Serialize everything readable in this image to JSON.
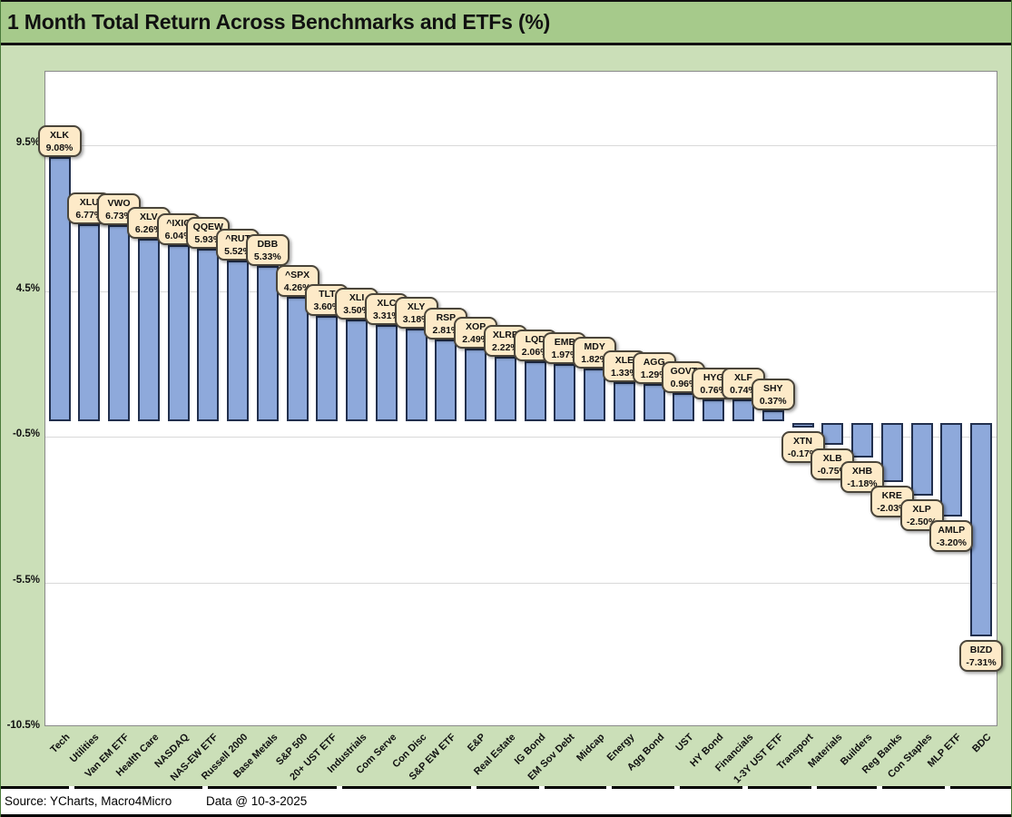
{
  "title": "1 Month Total Return Across Benchmarks and ETFs (%)",
  "footer": {
    "source_text": "Source: YCharts, Macro4Micro",
    "data_date": "Data @ 10-3-2025"
  },
  "colors": {
    "title_bar_bg": "#a6ca8b",
    "body_bg": "#cbdfb8",
    "plot_bg": "#ffffff",
    "gridline": "#d9d9d9",
    "bar_fill": "#8ea9db",
    "bar_border": "#22304e",
    "callout_bg": "#fdeac8",
    "callout_border": "#4a453a"
  },
  "chart_data": {
    "type": "bar",
    "title": "1 Month Total Return Across Benchmarks and ETFs (%)",
    "xlabel": "",
    "ylabel": "",
    "ylim": [
      -10.5,
      12
    ],
    "grid": true,
    "legend": false,
    "y_ticks": [
      {
        "label": "9.5%",
        "value": 9.5
      },
      {
        "label": "4.5%",
        "value": 4.5
      },
      {
        "label": "-0.5%",
        "value": -0.5
      },
      {
        "label": "-5.5%",
        "value": -5.5
      },
      {
        "label": "-10.5%",
        "value": -10.5
      }
    ],
    "points": [
      {
        "category": "Tech",
        "ticker": "XLK",
        "value": 9.08,
        "label": "9.08%"
      },
      {
        "category": "Utilities",
        "ticker": "XLU",
        "value": 6.77,
        "label": "6.77%"
      },
      {
        "category": "Van EM ETF",
        "ticker": "VWO",
        "value": 6.73,
        "label": "6.73%"
      },
      {
        "category": "Health Care",
        "ticker": "XLV",
        "value": 6.26,
        "label": "6.26%"
      },
      {
        "category": "NASDAQ",
        "ticker": "^IXIC",
        "value": 6.04,
        "label": "6.04%"
      },
      {
        "category": "NAS-EW ETF",
        "ticker": "QQEW",
        "value": 5.93,
        "label": "5.93%"
      },
      {
        "category": "Russell 2000",
        "ticker": "^RUT",
        "value": 5.52,
        "label": "5.52%"
      },
      {
        "category": "Base Metals",
        "ticker": "DBB",
        "value": 5.33,
        "label": "5.33%"
      },
      {
        "category": "S&P 500",
        "ticker": "^SPX",
        "value": 4.26,
        "label": "4.26%"
      },
      {
        "category": "20+ UST ETF",
        "ticker": "TLT",
        "value": 3.6,
        "label": "3.60%"
      },
      {
        "category": "Industrials",
        "ticker": "XLI",
        "value": 3.5,
        "label": "3.50%"
      },
      {
        "category": "Com Serve",
        "ticker": "XLC",
        "value": 3.31,
        "label": "3.31%"
      },
      {
        "category": "Con Disc",
        "ticker": "XLY",
        "value": 3.18,
        "label": "3.18%"
      },
      {
        "category": "S&P EW ETF",
        "ticker": "RSP",
        "value": 2.81,
        "label": "2.81%"
      },
      {
        "category": "E&P",
        "ticker": "XOP",
        "value": 2.49,
        "label": "2.49%"
      },
      {
        "category": "Real Estate",
        "ticker": "XLRE",
        "value": 2.22,
        "label": "2.22%"
      },
      {
        "category": "IG Bond",
        "ticker": "LQD",
        "value": 2.06,
        "label": "2.06%"
      },
      {
        "category": "EM Sov Debt",
        "ticker": "EMB",
        "value": 1.97,
        "label": "1.97%"
      },
      {
        "category": "Midcap",
        "ticker": "MDY",
        "value": 1.82,
        "label": "1.82%"
      },
      {
        "category": "Energy",
        "ticker": "XLE",
        "value": 1.33,
        "label": "1.33%"
      },
      {
        "category": "Agg Bond",
        "ticker": "AGG",
        "value": 1.29,
        "label": "1.29%"
      },
      {
        "category": "UST",
        "ticker": "GOVT",
        "value": 0.96,
        "label": "0.96%"
      },
      {
        "category": "HY Bond",
        "ticker": "HYG",
        "value": 0.76,
        "label": "0.76%"
      },
      {
        "category": "Financials",
        "ticker": "XLF",
        "value": 0.74,
        "label": "0.74%"
      },
      {
        "category": "1-3Y UST ETF",
        "ticker": "SHY",
        "value": 0.37,
        "label": "0.37%"
      },
      {
        "category": "Transport",
        "ticker": "XTN",
        "value": -0.17,
        "label": "-0.17%"
      },
      {
        "category": "Materials",
        "ticker": "XLB",
        "value": -0.75,
        "label": "-0.75%"
      },
      {
        "category": "Builders",
        "ticker": "XHB",
        "value": -1.18,
        "label": "-1.18%"
      },
      {
        "category": "Reg Banks",
        "ticker": "KRE",
        "value": -2.03,
        "label": "-2.03%"
      },
      {
        "category": "Con Staples",
        "ticker": "XLP",
        "value": -2.5,
        "label": "-2.50%"
      },
      {
        "category": "MLP ETF",
        "ticker": "AMLP",
        "value": -3.2,
        "label": "-3.20%"
      },
      {
        "category": "BDC",
        "ticker": "BIZD",
        "value": -7.31,
        "label": "-7.31%"
      }
    ]
  }
}
